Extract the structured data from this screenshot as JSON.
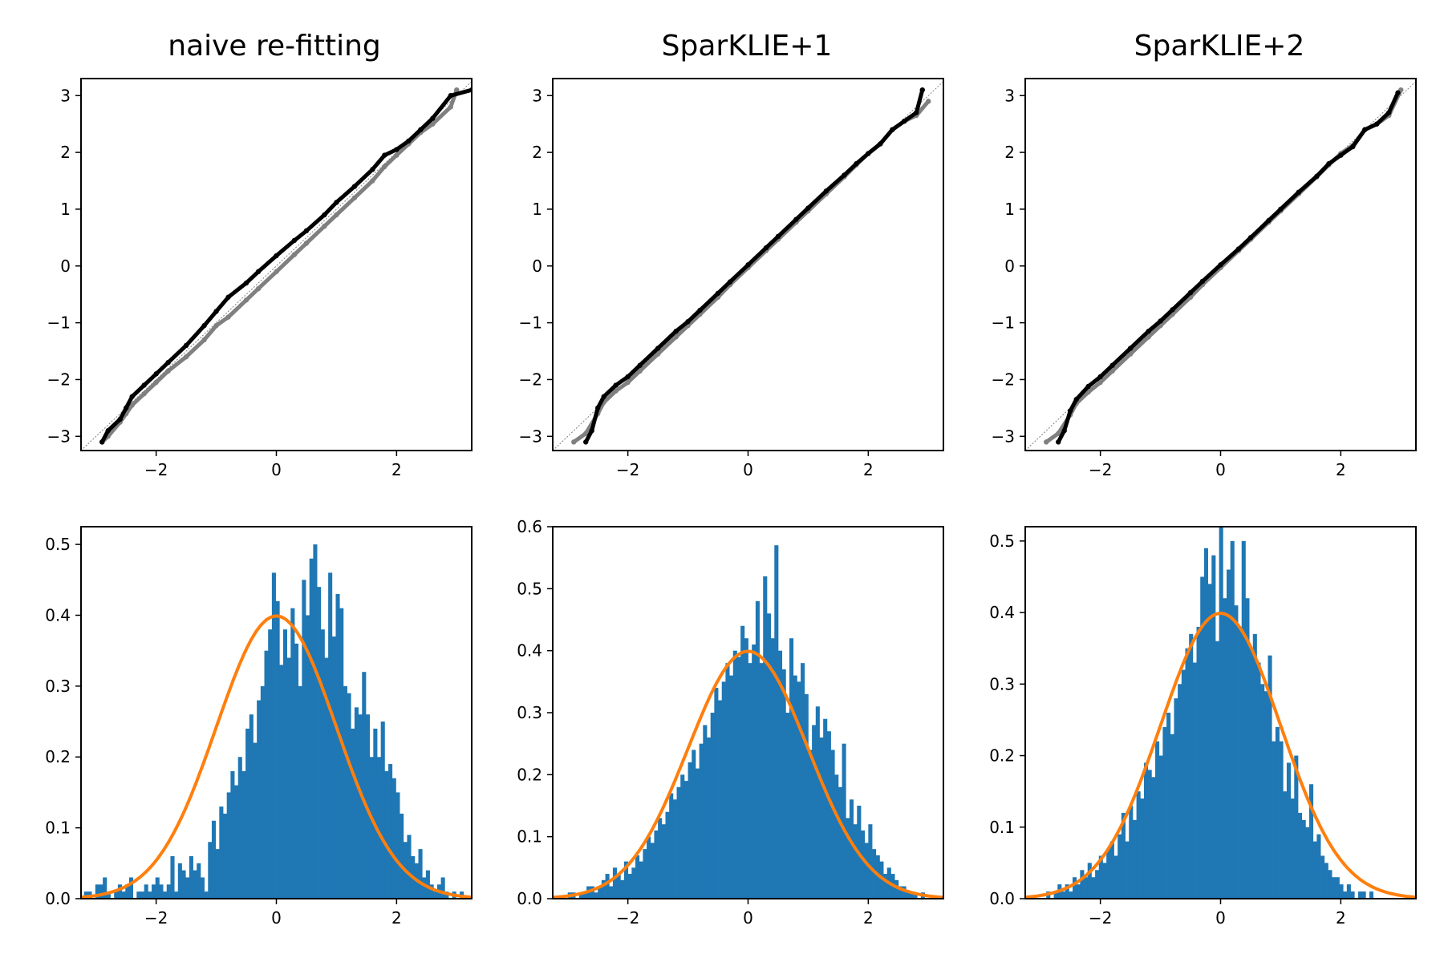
{
  "figure": {
    "titles": [
      "naive re-fitting",
      "SparKLIE+1",
      "SparKLIE+2"
    ],
    "colors": {
      "qq_primary": "#000000",
      "qq_secondary": "#808080",
      "reference_line": "#808080",
      "hist_bars": "#1f77b4",
      "normal_pdf": "#ff7f0e"
    }
  },
  "chart_data": [
    {
      "panel": "top-left",
      "type": "scatter",
      "title": "naive re-fitting",
      "xlim": [
        -3.25,
        3.25
      ],
      "ylim": [
        -3.25,
        3.3
      ],
      "xticks": [
        -2,
        0,
        2
      ],
      "yticks": [
        -3,
        -2,
        -1,
        0,
        1,
        2,
        3
      ],
      "reference_line": "y = x",
      "series": [
        {
          "style": "black",
          "x": [
            -2.9,
            -2.8,
            -2.6,
            -2.5,
            -2.4,
            -2.2,
            -2.0,
            -1.8,
            -1.5,
            -1.2,
            -1.0,
            -0.8,
            -0.5,
            -0.3,
            0.0,
            0.3,
            0.5,
            0.8,
            1.0,
            1.3,
            1.6,
            1.8,
            2.0,
            2.2,
            2.4,
            2.6,
            2.9,
            3.25
          ],
          "y": [
            -3.1,
            -2.9,
            -2.7,
            -2.5,
            -2.3,
            -2.1,
            -1.9,
            -1.7,
            -1.4,
            -1.05,
            -0.8,
            -0.55,
            -0.3,
            -0.1,
            0.18,
            0.45,
            0.62,
            0.9,
            1.12,
            1.4,
            1.7,
            1.95,
            2.05,
            2.2,
            2.4,
            2.6,
            3.0,
            3.1
          ]
        },
        {
          "style": "grey",
          "x": [
            -2.9,
            -2.8,
            -2.6,
            -2.5,
            -2.4,
            -2.2,
            -2.0,
            -1.8,
            -1.5,
            -1.2,
            -1.0,
            -0.8,
            -0.5,
            -0.3,
            0.0,
            0.3,
            0.5,
            0.8,
            1.0,
            1.3,
            1.6,
            1.8,
            2.0,
            2.2,
            2.4,
            2.6,
            2.9,
            3.0
          ],
          "y": [
            -3.1,
            -3.0,
            -2.75,
            -2.6,
            -2.45,
            -2.25,
            -2.05,
            -1.85,
            -1.6,
            -1.3,
            -1.05,
            -0.9,
            -0.6,
            -0.4,
            -0.1,
            0.2,
            0.4,
            0.7,
            0.9,
            1.2,
            1.5,
            1.75,
            1.95,
            2.15,
            2.35,
            2.5,
            2.8,
            3.1
          ]
        }
      ]
    },
    {
      "panel": "top-middle",
      "type": "scatter",
      "title": "SparKLIE+1",
      "xlim": [
        -3.25,
        3.25
      ],
      "ylim": [
        -3.25,
        3.3
      ],
      "xticks": [
        -2,
        0,
        2
      ],
      "yticks": [
        -3,
        -2,
        -1,
        0,
        1,
        2,
        3
      ],
      "reference_line": "y = x",
      "series": [
        {
          "style": "black",
          "x": [
            -2.7,
            -2.6,
            -2.5,
            -2.4,
            -2.2,
            -2.0,
            -1.8,
            -1.5,
            -1.2,
            -1.0,
            -0.8,
            -0.5,
            -0.3,
            0.0,
            0.3,
            0.5,
            0.8,
            1.0,
            1.3,
            1.6,
            1.8,
            2.0,
            2.2,
            2.4,
            2.6,
            2.8,
            2.9
          ],
          "y": [
            -3.1,
            -2.9,
            -2.5,
            -2.3,
            -2.1,
            -1.95,
            -1.75,
            -1.45,
            -1.15,
            -0.98,
            -0.78,
            -0.48,
            -0.28,
            0.02,
            0.32,
            0.52,
            0.82,
            1.02,
            1.32,
            1.6,
            1.8,
            1.98,
            2.15,
            2.4,
            2.55,
            2.7,
            3.1
          ]
        },
        {
          "style": "grey",
          "x": [
            -2.9,
            -2.7,
            -2.5,
            -2.4,
            -2.2,
            -2.0,
            -1.8,
            -1.5,
            -1.2,
            -1.0,
            -0.8,
            -0.5,
            -0.3,
            0.0,
            0.3,
            0.5,
            0.8,
            1.0,
            1.3,
            1.6,
            1.8,
            2.0,
            2.2,
            2.4,
            2.6,
            2.8,
            3.0
          ],
          "y": [
            -3.1,
            -2.95,
            -2.6,
            -2.4,
            -2.2,
            -2.05,
            -1.85,
            -1.55,
            -1.25,
            -1.05,
            -0.85,
            -0.55,
            -0.33,
            -0.03,
            0.27,
            0.47,
            0.77,
            0.97,
            1.27,
            1.57,
            1.78,
            1.98,
            2.15,
            2.4,
            2.55,
            2.65,
            2.9
          ]
        }
      ]
    },
    {
      "panel": "top-right",
      "type": "scatter",
      "title": "SparKLIE+2",
      "xlim": [
        -3.25,
        3.25
      ],
      "ylim": [
        -3.25,
        3.3
      ],
      "xticks": [
        -2,
        0,
        2
      ],
      "yticks": [
        -3,
        -2,
        -1,
        0,
        1,
        2,
        3
      ],
      "reference_line": "y = x",
      "series": [
        {
          "style": "black",
          "x": [
            -2.7,
            -2.6,
            -2.5,
            -2.4,
            -2.2,
            -2.0,
            -1.8,
            -1.5,
            -1.2,
            -1.0,
            -0.8,
            -0.5,
            -0.3,
            0.0,
            0.3,
            0.5,
            0.8,
            1.0,
            1.3,
            1.6,
            1.8,
            2.0,
            2.2,
            2.4,
            2.6,
            2.8,
            2.95
          ],
          "y": [
            -3.1,
            -2.9,
            -2.55,
            -2.35,
            -2.12,
            -1.95,
            -1.75,
            -1.45,
            -1.15,
            -0.97,
            -0.77,
            -0.47,
            -0.27,
            0.02,
            0.3,
            0.5,
            0.8,
            1.0,
            1.3,
            1.58,
            1.8,
            1.95,
            2.1,
            2.4,
            2.5,
            2.7,
            3.05
          ]
        },
        {
          "style": "grey",
          "x": [
            -2.9,
            -2.7,
            -2.5,
            -2.4,
            -2.2,
            -2.0,
            -1.8,
            -1.5,
            -1.2,
            -1.0,
            -0.8,
            -0.5,
            -0.3,
            0.0,
            0.3,
            0.5,
            0.8,
            1.0,
            1.3,
            1.6,
            1.8,
            2.0,
            2.2,
            2.4,
            2.6,
            2.8,
            3.0
          ],
          "y": [
            -3.1,
            -2.95,
            -2.62,
            -2.42,
            -2.22,
            -2.05,
            -1.85,
            -1.55,
            -1.25,
            -1.05,
            -0.85,
            -0.55,
            -0.33,
            -0.03,
            0.27,
            0.47,
            0.77,
            0.97,
            1.27,
            1.57,
            1.78,
            1.98,
            2.12,
            2.4,
            2.5,
            2.65,
            3.1
          ]
        }
      ]
    },
    {
      "panel": "bottom-left",
      "type": "bar",
      "xlim": [
        -3.25,
        3.25
      ],
      "ylim": [
        0,
        0.525
      ],
      "xticks": [
        -2,
        0,
        2
      ],
      "yticks": [
        0.0,
        0.1,
        0.2,
        0.3,
        0.4,
        0.5
      ],
      "ytick_labels": [
        "0.0",
        "0.1",
        "0.2",
        "0.3",
        "0.4",
        "0.5"
      ],
      "bin_start": -3.2,
      "bin_width": 0.0625,
      "values": [
        0.01,
        0.01,
        0.0,
        0.02,
        0.02,
        0.03,
        0.01,
        0.0,
        0.01,
        0.02,
        0.01,
        0.02,
        0.03,
        0.0,
        0.01,
        0.01,
        0.02,
        0.01,
        0.02,
        0.03,
        0.02,
        0.01,
        0.02,
        0.06,
        0.01,
        0.05,
        0.04,
        0.03,
        0.06,
        0.04,
        0.05,
        0.03,
        0.01,
        0.08,
        0.11,
        0.07,
        0.13,
        0.12,
        0.15,
        0.18,
        0.16,
        0.2,
        0.18,
        0.24,
        0.26,
        0.22,
        0.28,
        0.3,
        0.35,
        0.38,
        0.46,
        0.42,
        0.33,
        0.38,
        0.34,
        0.41,
        0.36,
        0.3,
        0.45,
        0.4,
        0.48,
        0.5,
        0.44,
        0.38,
        0.34,
        0.46,
        0.37,
        0.43,
        0.41,
        0.3,
        0.29,
        0.24,
        0.27,
        0.26,
        0.32,
        0.26,
        0.2,
        0.24,
        0.2,
        0.25,
        0.18,
        0.19,
        0.17,
        0.15,
        0.12,
        0.08,
        0.09,
        0.06,
        0.05,
        0.07,
        0.03,
        0.04,
        0.02,
        0.01,
        0.02,
        0.03,
        0.01,
        0.0,
        0.01,
        0.0,
        0.01,
        0.0,
        0.0,
        0.01
      ],
      "curve": {
        "type": "line",
        "name": "",
        "function": "standard normal pdf",
        "mean": 0,
        "sd": 1
      }
    },
    {
      "panel": "bottom-middle",
      "type": "bar",
      "xlim": [
        -3.25,
        3.25
      ],
      "ylim": [
        0,
        0.6
      ],
      "xticks": [
        -2,
        0,
        2
      ],
      "yticks": [
        0.0,
        0.1,
        0.2,
        0.3,
        0.4,
        0.5,
        0.6
      ],
      "ytick_labels": [
        "0.0",
        "0.1",
        "0.2",
        "0.3",
        "0.4",
        "0.5",
        "0.6"
      ],
      "bin_start": -3.0,
      "bin_width": 0.0625,
      "values": [
        0.01,
        0.01,
        0.0,
        0.01,
        0.01,
        0.02,
        0.02,
        0.01,
        0.02,
        0.03,
        0.04,
        0.02,
        0.05,
        0.04,
        0.03,
        0.06,
        0.04,
        0.05,
        0.07,
        0.06,
        0.08,
        0.1,
        0.09,
        0.11,
        0.13,
        0.12,
        0.14,
        0.17,
        0.16,
        0.18,
        0.2,
        0.19,
        0.22,
        0.24,
        0.21,
        0.25,
        0.28,
        0.26,
        0.3,
        0.34,
        0.32,
        0.35,
        0.38,
        0.36,
        0.4,
        0.39,
        0.44,
        0.42,
        0.38,
        0.41,
        0.48,
        0.38,
        0.52,
        0.46,
        0.42,
        0.57,
        0.4,
        0.37,
        0.3,
        0.42,
        0.36,
        0.35,
        0.38,
        0.33,
        0.24,
        0.28,
        0.31,
        0.26,
        0.29,
        0.27,
        0.24,
        0.2,
        0.18,
        0.25,
        0.13,
        0.16,
        0.12,
        0.15,
        0.11,
        0.09,
        0.12,
        0.08,
        0.07,
        0.06,
        0.04,
        0.05,
        0.04,
        0.03,
        0.02,
        0.02,
        0.01,
        0.01,
        0.01,
        0.0,
        0.01
      ],
      "curve": {
        "type": "line",
        "name": "",
        "function": "standard normal pdf",
        "mean": 0,
        "sd": 1
      }
    },
    {
      "panel": "bottom-right",
      "type": "bar",
      "xlim": [
        -3.25,
        3.25
      ],
      "ylim": [
        0,
        0.52
      ],
      "xticks": [
        -2,
        0,
        2
      ],
      "yticks": [
        0.0,
        0.1,
        0.2,
        0.3,
        0.4,
        0.5
      ],
      "ytick_labels": [
        "0.0",
        "0.1",
        "0.2",
        "0.3",
        "0.4",
        "0.5"
      ],
      "bin_start": -2.9,
      "bin_width": 0.0625,
      "values": [
        0.01,
        0.0,
        0.01,
        0.02,
        0.01,
        0.02,
        0.01,
        0.03,
        0.02,
        0.04,
        0.03,
        0.05,
        0.03,
        0.04,
        0.06,
        0.05,
        0.07,
        0.08,
        0.06,
        0.09,
        0.12,
        0.08,
        0.13,
        0.11,
        0.15,
        0.14,
        0.19,
        0.18,
        0.17,
        0.22,
        0.2,
        0.24,
        0.26,
        0.23,
        0.28,
        0.3,
        0.32,
        0.35,
        0.37,
        0.33,
        0.38,
        0.45,
        0.49,
        0.44,
        0.48,
        0.36,
        0.52,
        0.42,
        0.46,
        0.5,
        0.41,
        0.38,
        0.5,
        0.42,
        0.35,
        0.37,
        0.33,
        0.3,
        0.29,
        0.34,
        0.22,
        0.24,
        0.22,
        0.15,
        0.19,
        0.14,
        0.2,
        0.12,
        0.11,
        0.1,
        0.16,
        0.08,
        0.09,
        0.06,
        0.05,
        0.04,
        0.03,
        0.03,
        0.02,
        0.01,
        0.02,
        0.01,
        0.0,
        0.01,
        0.01,
        0.0,
        0.01
      ],
      "curve": {
        "type": "line",
        "name": "",
        "function": "standard normal pdf",
        "mean": 0,
        "sd": 1
      }
    }
  ]
}
